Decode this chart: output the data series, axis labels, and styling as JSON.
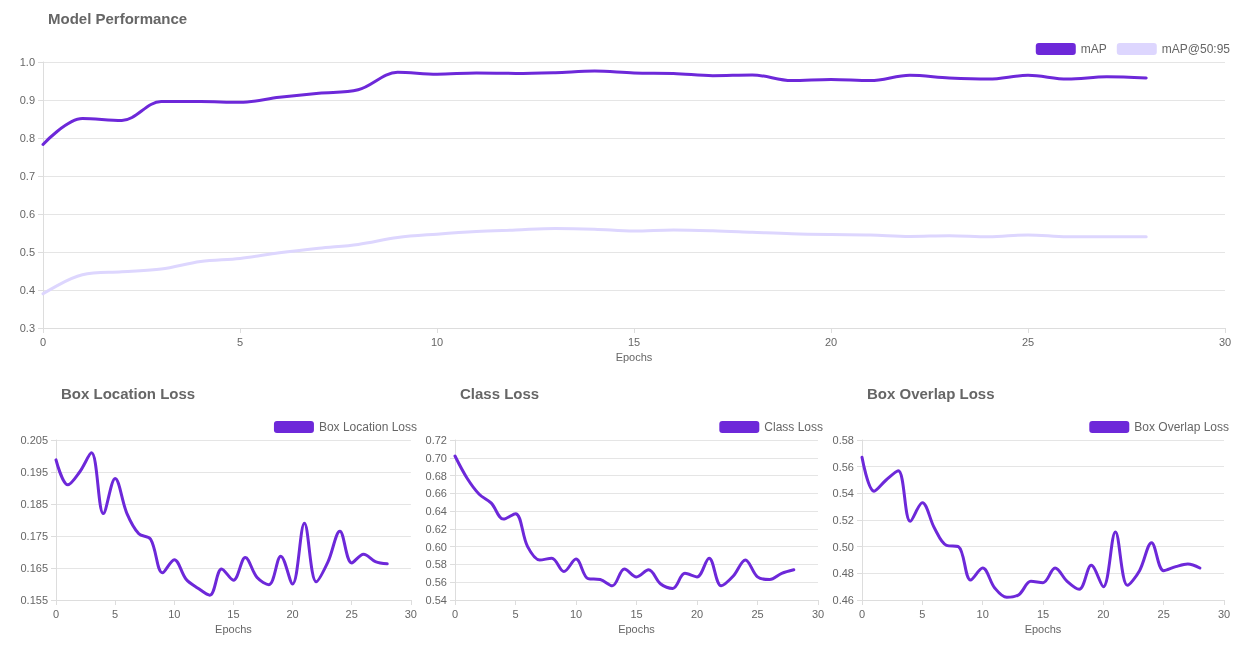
{
  "chart_data": [
    {
      "type": "line",
      "title": "Model Performance",
      "xlabel": "Epochs",
      "x": [
        0,
        1,
        2,
        3,
        4,
        5,
        6,
        7,
        8,
        9,
        10,
        11,
        12,
        13,
        14,
        15,
        16,
        17,
        18,
        19,
        20,
        21,
        22,
        23,
        24,
        25,
        26,
        27,
        28
      ],
      "series": [
        {
          "name": "mAP",
          "color": "#6d28d9",
          "values": [
            0.783,
            0.851,
            0.846,
            0.896,
            0.896,
            0.894,
            0.907,
            0.918,
            0.927,
            0.973,
            0.968,
            0.971,
            0.97,
            0.972,
            0.976,
            0.971,
            0.97,
            0.964,
            0.966,
            0.951,
            0.954,
            0.951,
            0.965,
            0.958,
            0.955,
            0.965,
            0.955,
            0.961,
            0.958
          ]
        },
        {
          "name": "mAP@50:95",
          "color": "#ddd6fe",
          "values": [
            0.39,
            0.44,
            0.448,
            0.455,
            0.475,
            0.483,
            0.498,
            0.51,
            0.52,
            0.538,
            0.547,
            0.554,
            0.558,
            0.562,
            0.56,
            0.555,
            0.558,
            0.556,
            0.552,
            0.548,
            0.546,
            0.545,
            0.541,
            0.543,
            0.54,
            0.545,
            0.54,
            0.54,
            0.54
          ]
        }
      ],
      "xlim": [
        0,
        30
      ],
      "xticks": [
        0,
        5,
        10,
        15,
        20,
        25,
        30
      ],
      "ylim": [
        0.3,
        1.0
      ],
      "yticks": [
        0.3,
        0.4,
        0.5,
        0.6,
        0.7,
        0.8,
        0.9,
        {
          "value": 1.0,
          "label": "1.0"
        }
      ],
      "grid": "y",
      "legend": "top right",
      "marker": "none",
      "line_style": "solid"
    },
    {
      "type": "line",
      "title": "Box Location Loss",
      "xlabel": "Epochs",
      "x": [
        0,
        1,
        2,
        3,
        4,
        5,
        6,
        7,
        8,
        9,
        10,
        11,
        12,
        13,
        14,
        15,
        16,
        17,
        18,
        19,
        20,
        21,
        22,
        23,
        24,
        25,
        26,
        27,
        28
      ],
      "series": [
        {
          "name": "Box Location Loss",
          "color": "#6d28d9",
          "values": [
            0.1988,
            0.191,
            0.195,
            0.201,
            0.182,
            0.193,
            0.182,
            0.1757,
            0.174,
            0.1635,
            0.1676,
            0.1615,
            0.1587,
            0.1565,
            0.1647,
            0.1612,
            0.1683,
            0.162,
            0.1598,
            0.1687,
            0.16,
            0.179,
            0.1607,
            0.167,
            0.1765,
            0.1666,
            0.1693,
            0.167,
            0.1663
          ]
        }
      ],
      "xlim": [
        0,
        30
      ],
      "xticks": [
        0,
        5,
        10,
        15,
        20,
        25,
        30
      ],
      "ylim": [
        0.155,
        0.205
      ],
      "yticks": [
        0.155,
        0.165,
        0.175,
        0.185,
        0.195,
        0.205
      ],
      "grid": "y",
      "legend": "top right",
      "marker": "none",
      "line_style": "solid"
    },
    {
      "type": "line",
      "title": "Class Loss",
      "xlabel": "Epochs",
      "x": [
        0,
        1,
        2,
        3,
        4,
        5,
        6,
        7,
        8,
        9,
        10,
        11,
        12,
        13,
        14,
        15,
        16,
        17,
        18,
        19,
        20,
        21,
        22,
        23,
        24,
        25,
        26,
        27,
        28
      ],
      "series": [
        {
          "name": "Class Loss",
          "color": "#6d28d9",
          "values": [
            0.702,
            0.677,
            0.659,
            0.649,
            0.631,
            0.637,
            0.6,
            0.585,
            0.587,
            0.572,
            0.586,
            0.564,
            0.563,
            0.556,
            0.575,
            0.566,
            0.574,
            0.558,
            0.553,
            0.57,
            0.566,
            0.587,
            0.556,
            0.567,
            0.585,
            0.566,
            0.563,
            0.57,
            0.574
          ]
        }
      ],
      "xlim": [
        0,
        30
      ],
      "xticks": [
        0,
        5,
        10,
        15,
        20,
        25,
        30
      ],
      "ylim": [
        0.54,
        0.72
      ],
      "yticks": [
        0.54,
        0.56,
        0.58,
        {
          "value": 0.6,
          "label": "0.60"
        },
        0.62,
        0.64,
        0.66,
        0.68,
        {
          "value": 0.7,
          "label": "0.70"
        },
        0.72
      ],
      "grid": "y",
      "legend": "top right",
      "marker": "none",
      "line_style": "solid"
    },
    {
      "type": "line",
      "title": "Box Overlap Loss",
      "xlabel": "Epochs",
      "x": [
        0,
        1,
        2,
        3,
        4,
        5,
        6,
        7,
        8,
        9,
        10,
        11,
        12,
        13,
        14,
        15,
        16,
        17,
        18,
        19,
        20,
        21,
        22,
        23,
        24,
        25,
        26,
        27,
        28
      ],
      "series": [
        {
          "name": "Box Overlap Loss",
          "color": "#6d28d9",
          "values": [
            0.567,
            0.5416,
            0.55,
            0.557,
            0.519,
            0.533,
            0.514,
            0.501,
            0.5,
            0.475,
            0.484,
            0.469,
            0.462,
            0.464,
            0.474,
            0.473,
            0.484,
            0.474,
            0.468,
            0.486,
            0.47,
            0.511,
            0.471,
            0.482,
            0.503,
            0.482,
            0.485,
            0.487,
            0.484
          ]
        }
      ],
      "xlim": [
        0,
        30
      ],
      "xticks": [
        0,
        5,
        10,
        15,
        20,
        25,
        30
      ],
      "ylim": [
        0.46,
        0.58
      ],
      "yticks": [
        0.46,
        0.48,
        {
          "value": 0.5,
          "label": "0.50"
        },
        0.52,
        0.54,
        0.56,
        0.58
      ],
      "grid": "y",
      "legend": "top right",
      "marker": "none",
      "line_style": "solid"
    }
  ]
}
